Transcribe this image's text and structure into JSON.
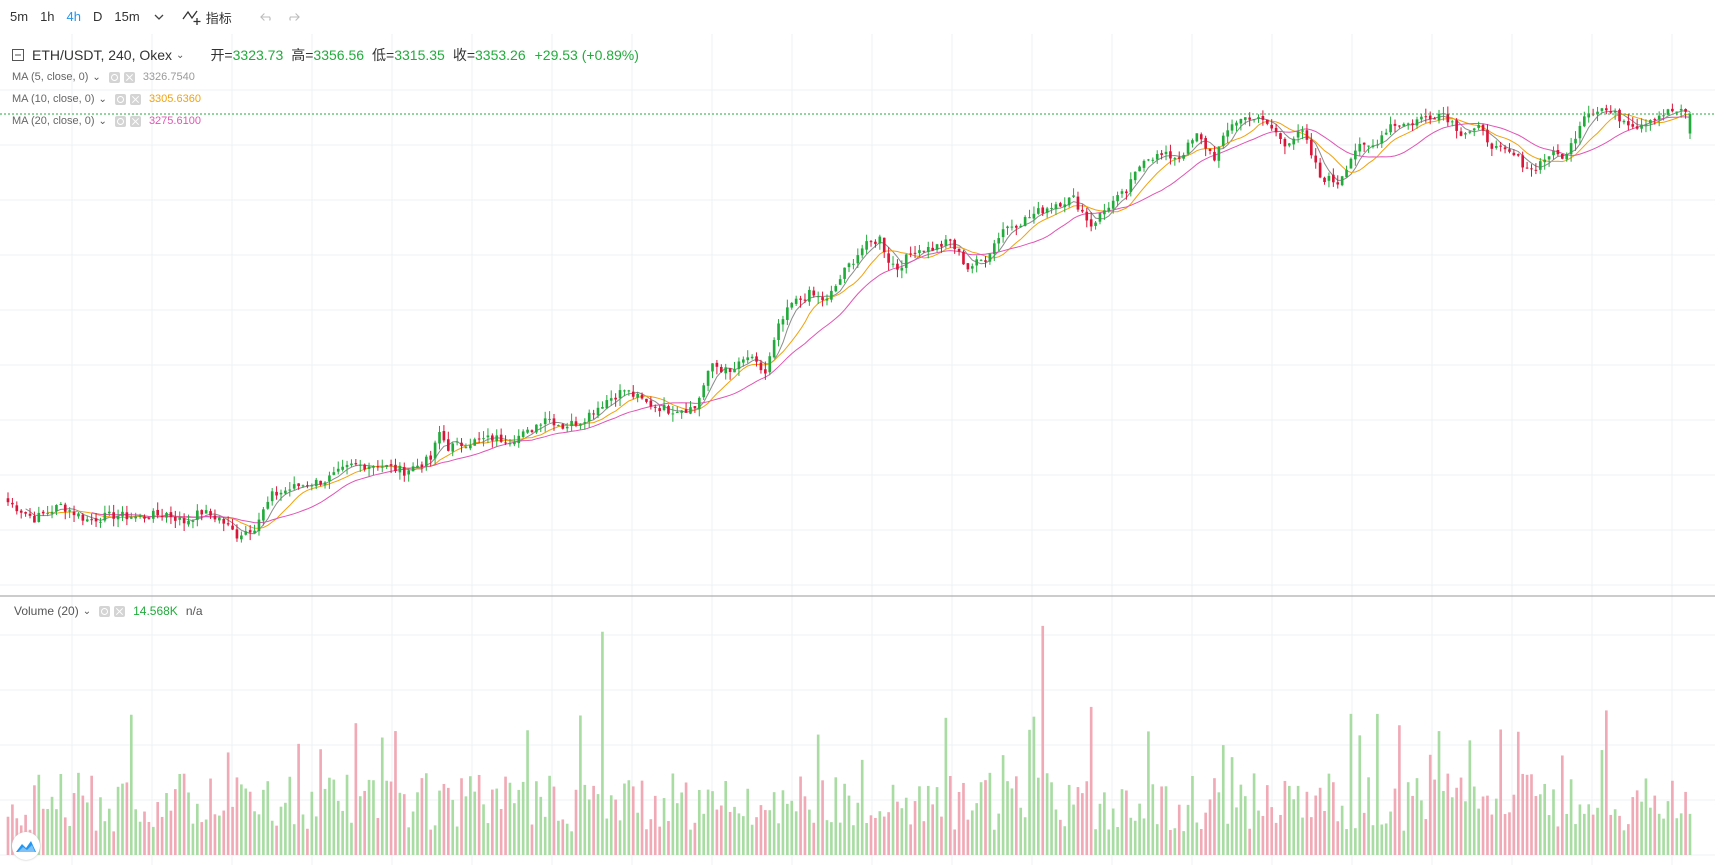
{
  "toolbar": {
    "timeframes": [
      "5m",
      "1h",
      "4h",
      "D",
      "15m"
    ],
    "active_timeframe": "4h",
    "indicators_label": "指标"
  },
  "legend": {
    "symbol": "ETH/USDT, 240, Okex",
    "open_label": "开=",
    "open": "3323.73",
    "high_label": "高=",
    "high": "3356.56",
    "low_label": "低=",
    "low": "3315.35",
    "close_label": "收=",
    "close": "3353.26",
    "change": "+29.53 (+0.89%)",
    "ma5_label": "MA (5, close, 0)",
    "ma5_value": "3326.7540",
    "ma10_label": "MA (10, close, 0)",
    "ma10_value": "3305.6360",
    "ma20_label": "MA (20, close, 0)",
    "ma20_value": "3275.6100"
  },
  "volume": {
    "label": "Volume (20)",
    "value": "14.568K",
    "ma": "n/a"
  },
  "colors": {
    "up": "#22ab3c",
    "down": "#d9163a",
    "up_vol": "#a8dca3",
    "down_vol": "#f0a9b5",
    "ma5": "#8b8b8b",
    "ma10": "#f2a20d",
    "ma20": "#e055b4",
    "active_tab": "#2196f3"
  },
  "chart_data": {
    "type": "candlestick",
    "symbol": "ETH/USDT",
    "interval": "240",
    "close_path": [
      [
        0,
        2765
      ],
      [
        6,
        2740
      ],
      [
        12,
        2760
      ],
      [
        18,
        2738
      ],
      [
        24,
        2745
      ],
      [
        30,
        2742
      ],
      [
        36,
        2748
      ],
      [
        40,
        2735
      ],
      [
        44,
        2750
      ],
      [
        48,
        2740
      ],
      [
        52,
        2715
      ],
      [
        56,
        2728
      ],
      [
        60,
        2775
      ],
      [
        66,
        2790
      ],
      [
        72,
        2798
      ],
      [
        78,
        2820
      ],
      [
        84,
        2822
      ],
      [
        90,
        2812
      ],
      [
        96,
        2830
      ],
      [
        98,
        2870
      ],
      [
        100,
        2848
      ],
      [
        104,
        2855
      ],
      [
        110,
        2862
      ],
      [
        114,
        2860
      ],
      [
        118,
        2870
      ],
      [
        122,
        2895
      ],
      [
        126,
        2880
      ],
      [
        130,
        2888
      ],
      [
        136,
        2920
      ],
      [
        140,
        2935
      ],
      [
        145,
        2915
      ],
      [
        150,
        2905
      ],
      [
        156,
        2908
      ],
      [
        160,
        2975
      ],
      [
        164,
        2960
      ],
      [
        168,
        2985
      ],
      [
        172,
        2960
      ],
      [
        175,
        3030
      ],
      [
        178,
        3065
      ],
      [
        182,
        3080
      ],
      [
        186,
        3070
      ],
      [
        190,
        3115
      ],
      [
        194,
        3150
      ],
      [
        198,
        3165
      ],
      [
        200,
        3132
      ],
      [
        202,
        3120
      ],
      [
        206,
        3148
      ],
      [
        210,
        3150
      ],
      [
        214,
        3160
      ],
      [
        218,
        3120
      ],
      [
        222,
        3135
      ],
      [
        226,
        3180
      ],
      [
        230,
        3190
      ],
      [
        234,
        3205
      ],
      [
        238,
        3218
      ],
      [
        242,
        3225
      ],
      [
        246,
        3185
      ],
      [
        250,
        3215
      ],
      [
        254,
        3235
      ],
      [
        258,
        3288
      ],
      [
        262,
        3290
      ],
      [
        266,
        3288
      ],
      [
        270,
        3320
      ],
      [
        274,
        3288
      ],
      [
        278,
        3340
      ],
      [
        282,
        3350
      ],
      [
        286,
        3338
      ],
      [
        290,
        3310
      ],
      [
        294,
        3325
      ],
      [
        298,
        3258
      ],
      [
        302,
        3250
      ],
      [
        306,
        3300
      ],
      [
        310,
        3305
      ],
      [
        314,
        3338
      ],
      [
        318,
        3338
      ],
      [
        322,
        3350
      ],
      [
        326,
        3355
      ],
      [
        330,
        3326
      ],
      [
        334,
        3330
      ],
      [
        338,
        3300
      ],
      [
        342,
        3290
      ],
      [
        346,
        3268
      ],
      [
        350,
        3292
      ],
      [
        354,
        3290
      ],
      [
        358,
        3355
      ],
      [
        362,
        3362
      ],
      [
        366,
        3348
      ],
      [
        370,
        3336
      ],
      [
        374,
        3350
      ],
      [
        378,
        3358
      ],
      [
        382,
        3353
      ]
    ],
    "volume_scale": [
      0,
      "20K"
    ]
  }
}
